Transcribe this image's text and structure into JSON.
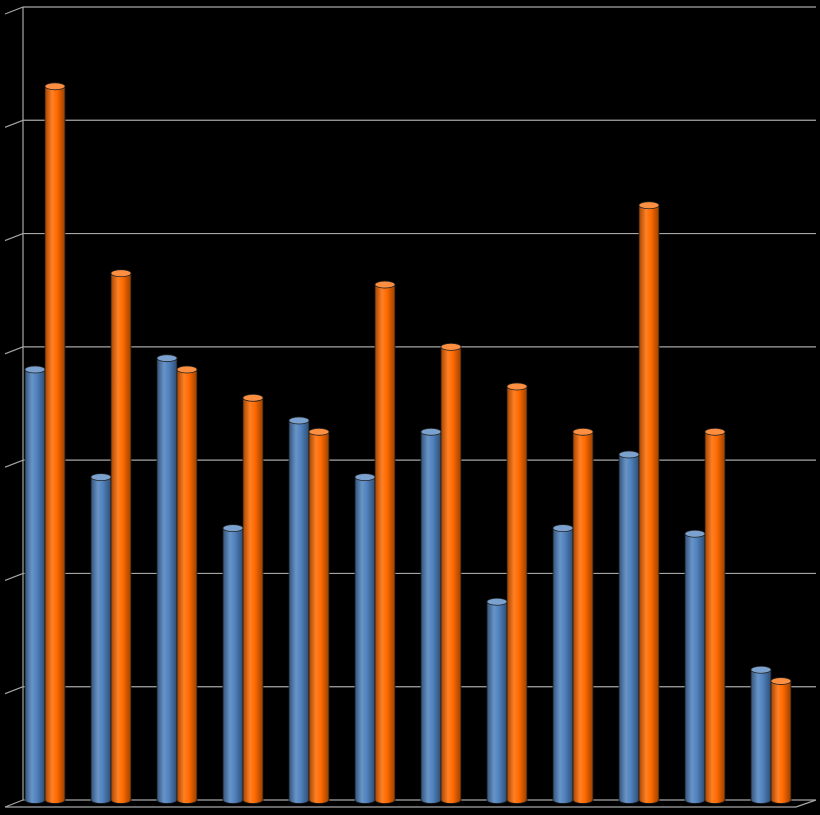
{
  "chart_data": {
    "type": "bar",
    "style": "3d-cylinder",
    "background": "#000000",
    "grid": true,
    "gridlines_color": "#a6a6a6",
    "ylim": [
      0,
      7
    ],
    "categories": [
      "",
      "",
      "",
      "",
      "",
      "",
      "",
      "",
      "",
      "",
      "",
      ""
    ],
    "series": [
      {
        "color": "#4f81bd",
        "values": [
          3.8,
          2.85,
          3.9,
          2.4,
          3.35,
          2.85,
          3.25,
          1.75,
          2.4,
          3.05,
          2.35,
          1.15
        ]
      },
      {
        "color": "#ff6a00",
        "values": [
          6.3,
          4.65,
          3.8,
          3.55,
          3.25,
          4.55,
          4.0,
          3.65,
          3.25,
          5.25,
          3.25,
          1.05
        ]
      }
    ],
    "title": "",
    "xlabel": "",
    "ylabel": ""
  }
}
